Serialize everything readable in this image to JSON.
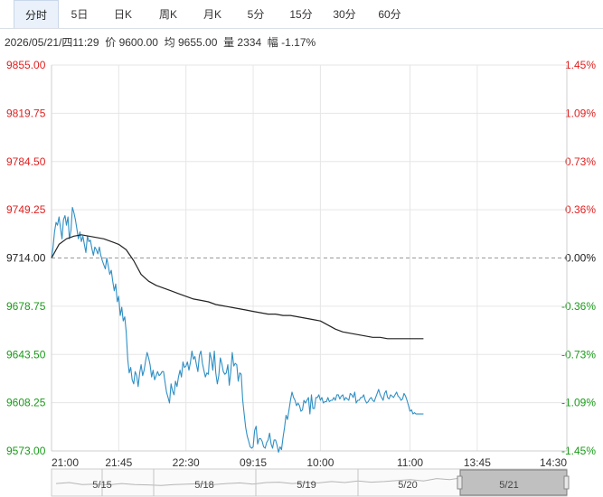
{
  "tabs": [
    "分时",
    "5日",
    "日K",
    "周K",
    "月K",
    "5分",
    "15分",
    "30分",
    "60分"
  ],
  "active_tab": 0,
  "info": {
    "datetime": "2026/05/21/四11:29",
    "price_label": "价",
    "price": "9600.00",
    "avg_label": "均",
    "avg": "9655.00",
    "vol_label": "量",
    "vol": "2334",
    "chg_label": "幅",
    "chg": "-1.17%"
  },
  "colors": {
    "up": "#e02020",
    "down": "#1a9a1a",
    "neutral": "#222222",
    "price_line": "#2f8fc4",
    "avg_line": "#222222",
    "grid": "#e6e6e6"
  },
  "navigator": {
    "labels": [
      "5/15",
      "5/18",
      "5/19",
      "5/20",
      "5/21"
    ]
  },
  "chart_data": {
    "type": "line",
    "prev_close": 9714.0,
    "ylim": [
      9573.0,
      9855.0
    ],
    "y_ticks_left": [
      "9855.00",
      "9819.75",
      "9784.50",
      "9749.25",
      "9714.00",
      "9678.75",
      "9643.50",
      "9608.25",
      "9573.00"
    ],
    "y_ticks_right": [
      "1.45%",
      "1.09%",
      "0.73%",
      "0.36%",
      "0.00%",
      "-0.36%",
      "-0.73%",
      "-1.09%",
      "-1.45%"
    ],
    "x_ticks": [
      "21:00",
      "21:45",
      "22:30",
      "09:15",
      "10:00",
      "11:00",
      "13:45",
      "14:30"
    ],
    "x_total_minutes": 345,
    "x_tick_minutes": [
      0,
      45,
      90,
      135,
      180,
      240,
      285,
      345
    ],
    "series": [
      {
        "key": "price",
        "minutes": [
          0,
          1,
          2,
          3,
          4,
          5,
          6,
          7,
          8,
          9,
          10,
          11,
          12,
          13,
          14,
          15,
          16,
          17,
          18,
          19,
          20,
          21,
          22,
          23,
          24,
          25,
          26,
          27,
          28,
          29,
          30,
          31,
          32,
          33,
          34,
          35,
          36,
          37,
          38,
          39,
          40,
          41,
          42,
          43,
          44,
          45,
          46,
          47,
          48,
          49,
          50,
          51,
          52,
          53,
          54,
          55,
          56,
          57,
          58,
          59,
          60,
          61,
          62,
          63,
          64,
          65,
          66,
          67,
          68,
          69,
          70,
          71,
          72,
          73,
          74,
          75,
          76,
          77,
          78,
          79,
          80,
          81,
          82,
          83,
          84,
          85,
          86,
          87,
          88,
          89,
          90,
          91,
          92,
          93,
          94,
          95,
          96,
          97,
          98,
          99,
          100,
          101,
          102,
          103,
          104,
          105,
          106,
          107,
          108,
          109,
          110,
          111,
          112,
          113,
          114,
          115,
          116,
          117,
          118,
          119,
          120,
          121,
          122,
          123,
          124,
          125,
          126,
          127,
          128,
          129,
          130,
          131,
          132,
          133,
          134,
          135,
          136,
          137,
          138,
          139,
          140,
          141,
          142,
          143,
          144,
          145,
          146,
          147,
          148,
          149,
          150,
          151,
          152,
          153,
          154,
          155,
          156,
          157,
          158,
          159,
          160,
          161,
          162,
          163,
          164,
          165,
          166,
          167,
          168,
          169,
          170,
          171,
          172,
          173,
          174,
          175,
          176,
          177,
          178,
          179,
          180,
          181,
          182,
          183,
          184,
          185,
          186,
          187,
          188,
          189,
          190,
          191,
          192,
          193,
          194,
          195,
          196,
          197,
          198,
          199,
          200,
          201,
          202,
          203,
          204,
          205,
          206,
          207,
          208,
          209,
          210,
          211,
          212,
          213,
          214,
          215,
          216,
          217,
          218,
          219,
          220,
          221,
          222,
          223,
          224,
          225,
          226,
          227,
          228,
          229,
          230,
          231,
          232,
          233,
          234,
          235,
          236,
          237,
          238,
          239,
          240,
          241,
          242,
          243,
          244,
          245,
          246,
          247,
          248,
          249
        ],
        "values": [
          9714,
          9722,
          9733,
          9740,
          9738,
          9744,
          9736,
          9728,
          9742,
          9745,
          9738,
          9744,
          9728,
          9734,
          9751,
          9747,
          9742,
          9735,
          9728,
          9733,
          9726,
          9730,
          9724,
          9718,
          9730,
          9726,
          9727,
          9721,
          9716,
          9722,
          9720,
          9717,
          9722,
          9716,
          9712,
          9709,
          9706,
          9714,
          9708,
          9702,
          9705,
          9697,
          9690,
          9695,
          9682,
          9686,
          9672,
          9678,
          9668,
          9671,
          9660,
          9640,
          9630,
          9634,
          9625,
          9622,
          9631,
          9628,
          9620,
          9630,
          9636,
          9628,
          9632,
          9639,
          9645,
          9641,
          9636,
          9627,
          9632,
          9625,
          9628,
          9631,
          9628,
          9629,
          9631,
          9631,
          9623,
          9616,
          9612,
          9608,
          9622,
          9617,
          9614,
          9624,
          9620,
          9627,
          9632,
          9627,
          9638,
          9634,
          9635,
          9638,
          9632,
          9638,
          9646,
          9640,
          9642,
          9636,
          9631,
          9643,
          9646,
          9637,
          9632,
          9627,
          9630,
          9629,
          9645,
          9640,
          9632,
          9646,
          9630,
          9622,
          9628,
          9641,
          9637,
          9631,
          9629,
          9630,
          9636,
          9621,
          9631,
          9645,
          9635,
          9637,
          9636,
          9624,
          9630,
          9629,
          9610,
          9600,
          9590,
          9584,
          9580,
          9576,
          9575,
          9576,
          9588,
          9591,
          9578,
          9582,
          9582,
          9580,
          9576,
          9575,
          9579,
          9581,
          9586,
          9578,
          9575,
          9581,
          9581,
          9577,
          9572,
          9576,
          9574,
          9583,
          9590,
          9599,
          9596,
          9603,
          9610,
          9616,
          9612,
          9610,
          9606,
          9608,
          9606,
          9602,
          9603,
          9610,
          9608,
          9610,
          9612,
          9600,
          9614,
          9604,
          9604,
          9612,
          9612,
          9614,
          9610,
          9612,
          9608,
          9609,
          9609,
          9612,
          9609,
          9610,
          9610,
          9612,
          9610,
          9614,
          9614,
          9611,
          9613,
          9614,
          9610,
          9612,
          9611,
          9610,
          9615,
          9614,
          9612,
          9616,
          9608,
          9610,
          9610,
          9612,
          9612,
          9614,
          9610,
          9608,
          9609,
          9611,
          9612,
          9610,
          9609,
          9612,
          9615,
          9618,
          9614,
          9612,
          9610,
          9615,
          9617,
          9612,
          9611,
          9614,
          9613,
          9612,
          9614,
          9616,
          9613,
          9612,
          9610,
          9611,
          9615,
          9613,
          9610,
          9606,
          9602,
          9603,
          9600,
          9601,
          9600,
          9600,
          9600,
          9600,
          9600,
          9600,
          9600
        ]
      },
      {
        "key": "average",
        "minutes": [
          0,
          5,
          10,
          15,
          20,
          25,
          30,
          35,
          40,
          45,
          50,
          55,
          60,
          65,
          70,
          75,
          80,
          85,
          90,
          95,
          100,
          105,
          110,
          115,
          120,
          125,
          130,
          135,
          140,
          145,
          150,
          155,
          160,
          165,
          170,
          175,
          180,
          185,
          190,
          195,
          200,
          205,
          210,
          215,
          220,
          225,
          230,
          235,
          240,
          245,
          249
        ],
        "values": [
          9714,
          9724,
          9728,
          9730,
          9731,
          9730,
          9729,
          9728,
          9726,
          9724,
          9720,
          9712,
          9702,
          9697,
          9694,
          9692,
          9690,
          9688,
          9686,
          9684,
          9683,
          9682,
          9680,
          9679,
          9678,
          9677,
          9676,
          9675,
          9674,
          9673,
          9673,
          9672,
          9672,
          9671,
          9670,
          9669,
          9668,
          9665,
          9662,
          9660,
          9659,
          9658,
          9657,
          9656,
          9656,
          9655,
          9655,
          9655,
          9655,
          9655,
          9655
        ]
      }
    ],
    "grid": true
  }
}
